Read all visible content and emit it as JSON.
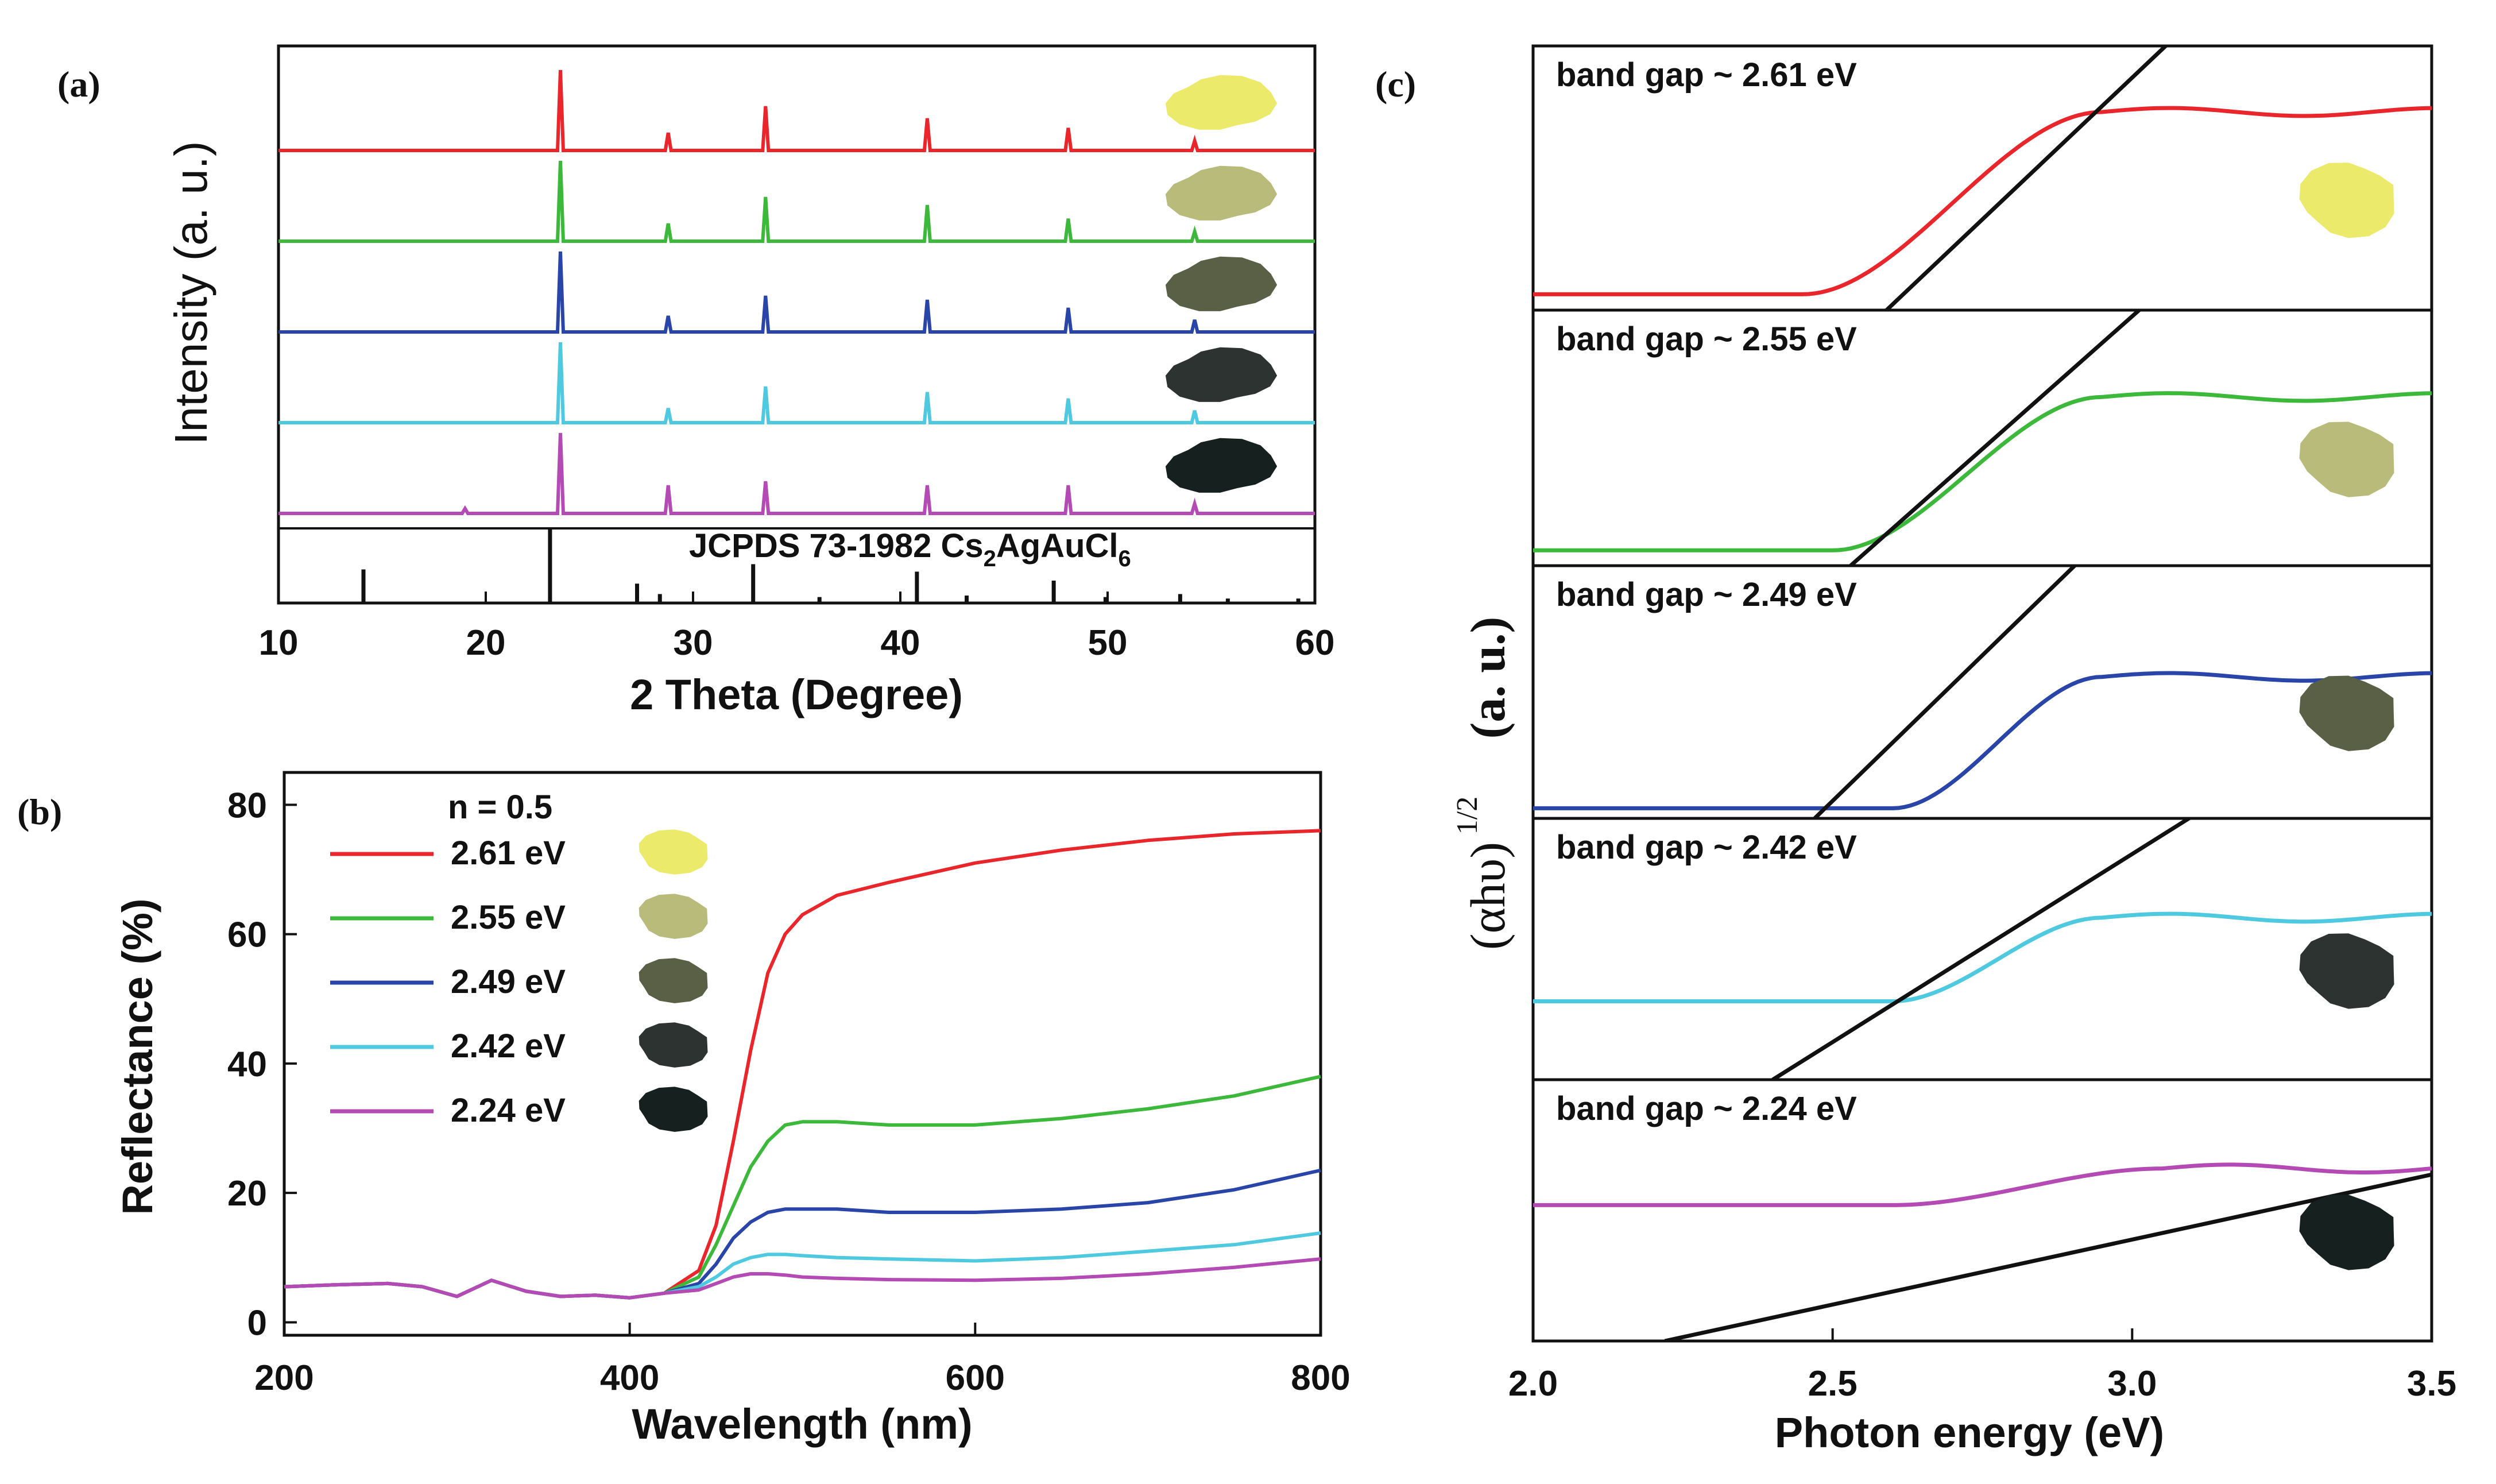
{
  "panels": {
    "a": {
      "label": "(a)"
    },
    "b": {
      "label": "(b)"
    },
    "c": {
      "label": "(c)"
    }
  },
  "colors": {
    "red": "#e8262b",
    "green": "#3cb83a",
    "blue": "#2a45a8",
    "cyan": "#4ec9e0",
    "magenta": "#b44ab4",
    "black": "#111111"
  },
  "swatch_colors": [
    "#ecea6a",
    "#b9bb7a",
    "#5a6046",
    "#2c3330",
    "#16201e"
  ],
  "chart_data": [
    {
      "id": "a",
      "type": "line",
      "title": "",
      "xlabel": "2 Theta (Degree)",
      "ylabel": "Intensity (a. u.)",
      "xlim": [
        10,
        60
      ],
      "xticks": [
        "10",
        "20",
        "30",
        "40",
        "50",
        "60"
      ],
      "reference_label": "JCPDS 73-1982 Cs2AgAuCl6",
      "peaks_2theta": [
        23.6,
        28.8,
        33.5,
        41.3,
        48.1,
        54.2
      ],
      "series": [
        {
          "name": "2.61 eV",
          "color": "#e8262b",
          "peak_heights": [
            1.0,
            0.22,
            0.55,
            0.4,
            0.28,
            0.12
          ]
        },
        {
          "name": "2.55 eV",
          "color": "#3cb83a",
          "peak_heights": [
            1.0,
            0.22,
            0.55,
            0.45,
            0.28,
            0.12
          ]
        },
        {
          "name": "2.49 eV",
          "color": "#2a45a8",
          "peak_heights": [
            1.0,
            0.2,
            0.45,
            0.4,
            0.3,
            0.15
          ]
        },
        {
          "name": "2.42 eV",
          "color": "#4ec9e0",
          "peak_heights": [
            1.0,
            0.18,
            0.45,
            0.38,
            0.3,
            0.15
          ]
        },
        {
          "name": "2.24 eV",
          "color": "#b44ab4",
          "peak_heights": [
            1.0,
            0.35,
            0.4,
            0.35,
            0.35,
            0.12
          ],
          "extra_minor_peak": 19.0
        }
      ],
      "reference_bars": [
        {
          "x": 14.1,
          "h": 0.45
        },
        {
          "x": 23.1,
          "h": 1.0
        },
        {
          "x": 27.3,
          "h": 0.26
        },
        {
          "x": 28.4,
          "h": 0.12
        },
        {
          "x": 32.9,
          "h": 0.52
        },
        {
          "x": 36.1,
          "h": 0.08
        },
        {
          "x": 40.8,
          "h": 0.42
        },
        {
          "x": 43.2,
          "h": 0.1
        },
        {
          "x": 47.4,
          "h": 0.3
        },
        {
          "x": 49.9,
          "h": 0.08
        },
        {
          "x": 53.5,
          "h": 0.12
        },
        {
          "x": 55.8,
          "h": 0.06
        },
        {
          "x": 59.2,
          "h": 0.06
        }
      ]
    },
    {
      "id": "b",
      "type": "line",
      "title": "",
      "xlabel": "Wavelength (nm)",
      "ylabel": "Reflectance (%)",
      "xlim": [
        200,
        800
      ],
      "ylim": [
        -2,
        85
      ],
      "xticks": [
        200,
        400,
        600,
        800
      ],
      "yticks": [
        0,
        20,
        40,
        60,
        80
      ],
      "legend_title": "n = 0.5",
      "legend_position": "top-left",
      "series": [
        {
          "name": "2.61 eV",
          "color": "#e8262b",
          "x": [
            200,
            230,
            260,
            280,
            300,
            320,
            340,
            360,
            380,
            400,
            420,
            440,
            450,
            460,
            470,
            480,
            490,
            500,
            520,
            550,
            600,
            650,
            700,
            750,
            800
          ],
          "y": [
            5.5,
            5.8,
            6.0,
            5.5,
            4.0,
            6.5,
            4.8,
            4.0,
            4.2,
            3.8,
            4.5,
            8,
            15,
            28,
            42,
            54,
            60,
            63,
            66,
            68,
            71,
            73,
            74.5,
            75.5,
            76
          ]
        },
        {
          "name": "2.55 eV",
          "color": "#3cb83a",
          "x": [
            200,
            230,
            260,
            280,
            300,
            320,
            340,
            360,
            380,
            400,
            420,
            440,
            450,
            460,
            470,
            480,
            490,
            500,
            520,
            550,
            600,
            650,
            700,
            750,
            800
          ],
          "y": [
            5.5,
            5.8,
            6.0,
            5.5,
            4.0,
            6.5,
            4.8,
            4.0,
            4.2,
            3.8,
            4.5,
            7,
            12,
            18,
            24,
            28,
            30.5,
            31,
            31,
            30.5,
            30.5,
            31.5,
            33,
            35,
            38
          ]
        },
        {
          "name": "2.49 eV",
          "color": "#2a45a8",
          "x": [
            200,
            230,
            260,
            280,
            300,
            320,
            340,
            360,
            380,
            400,
            420,
            440,
            450,
            460,
            470,
            480,
            490,
            500,
            520,
            550,
            600,
            650,
            700,
            750,
            800
          ],
          "y": [
            5.5,
            5.8,
            6.0,
            5.5,
            4.0,
            6.5,
            4.8,
            4.0,
            4.2,
            3.8,
            4.5,
            6,
            9,
            13,
            15.5,
            17,
            17.5,
            17.5,
            17.5,
            17,
            17,
            17.5,
            18.5,
            20.5,
            23.5
          ]
        },
        {
          "name": "2.42 eV",
          "color": "#4ec9e0",
          "x": [
            200,
            230,
            260,
            280,
            300,
            320,
            340,
            360,
            380,
            400,
            420,
            440,
            450,
            460,
            470,
            480,
            490,
            500,
            520,
            550,
            600,
            650,
            700,
            750,
            800
          ],
          "y": [
            5.5,
            5.8,
            6.0,
            5.5,
            4.0,
            6.5,
            4.8,
            4.0,
            4.2,
            3.8,
            4.5,
            5.5,
            7,
            9,
            10,
            10.5,
            10.5,
            10.3,
            10,
            9.8,
            9.5,
            10,
            11,
            12,
            13.8
          ]
        },
        {
          "name": "2.24 eV",
          "color": "#b44ab4",
          "x": [
            200,
            230,
            260,
            280,
            300,
            320,
            340,
            360,
            380,
            400,
            420,
            440,
            450,
            460,
            470,
            480,
            490,
            500,
            520,
            550,
            600,
            650,
            700,
            750,
            800
          ],
          "y": [
            5.5,
            5.8,
            6.0,
            5.5,
            4.0,
            6.5,
            4.8,
            4.0,
            4.2,
            3.8,
            4.5,
            5,
            6,
            7,
            7.5,
            7.5,
            7.3,
            7,
            6.8,
            6.6,
            6.5,
            6.8,
            7.5,
            8.5,
            9.8
          ]
        }
      ]
    },
    {
      "id": "c",
      "type": "line",
      "title": "",
      "xlabel": "Photon energy (eV)",
      "ylabel": "(αhυ)",
      "ylabel_sup": "1/2",
      "ylabel_unit": "(a. u.)",
      "xlim": [
        2.0,
        3.5
      ],
      "xticks": [
        "2.0",
        "2.5",
        "3.0",
        "3.5"
      ],
      "subplots": [
        {
          "label": "band gap ~ 2.61 eV",
          "color": "#e8262b",
          "gap": 2.61,
          "base": 0.06,
          "plateau": 0.75,
          "rise_start": 2.45,
          "rise_end": 2.95
        },
        {
          "label": "band gap ~ 2.55 eV",
          "color": "#3cb83a",
          "gap": 2.55,
          "base": 0.06,
          "plateau": 0.66,
          "rise_start": 2.5,
          "rise_end": 2.95
        },
        {
          "label": "band gap ~ 2.49 eV",
          "color": "#2a45a8",
          "gap": 2.49,
          "base": 0.04,
          "plateau": 0.56,
          "rise_start": 2.6,
          "rise_end": 2.95
        },
        {
          "label": "band gap ~ 2.42 eV",
          "color": "#4ec9e0",
          "gap": 2.42,
          "base": 0.3,
          "plateau": 0.62,
          "rise_start": 2.6,
          "rise_end": 2.95
        },
        {
          "label": "band gap ~ 2.24 eV",
          "color": "#b44ab4",
          "gap": 2.24,
          "base": 0.52,
          "plateau": 0.66,
          "rise_start": 2.6,
          "rise_end": 3.05
        }
      ]
    }
  ]
}
